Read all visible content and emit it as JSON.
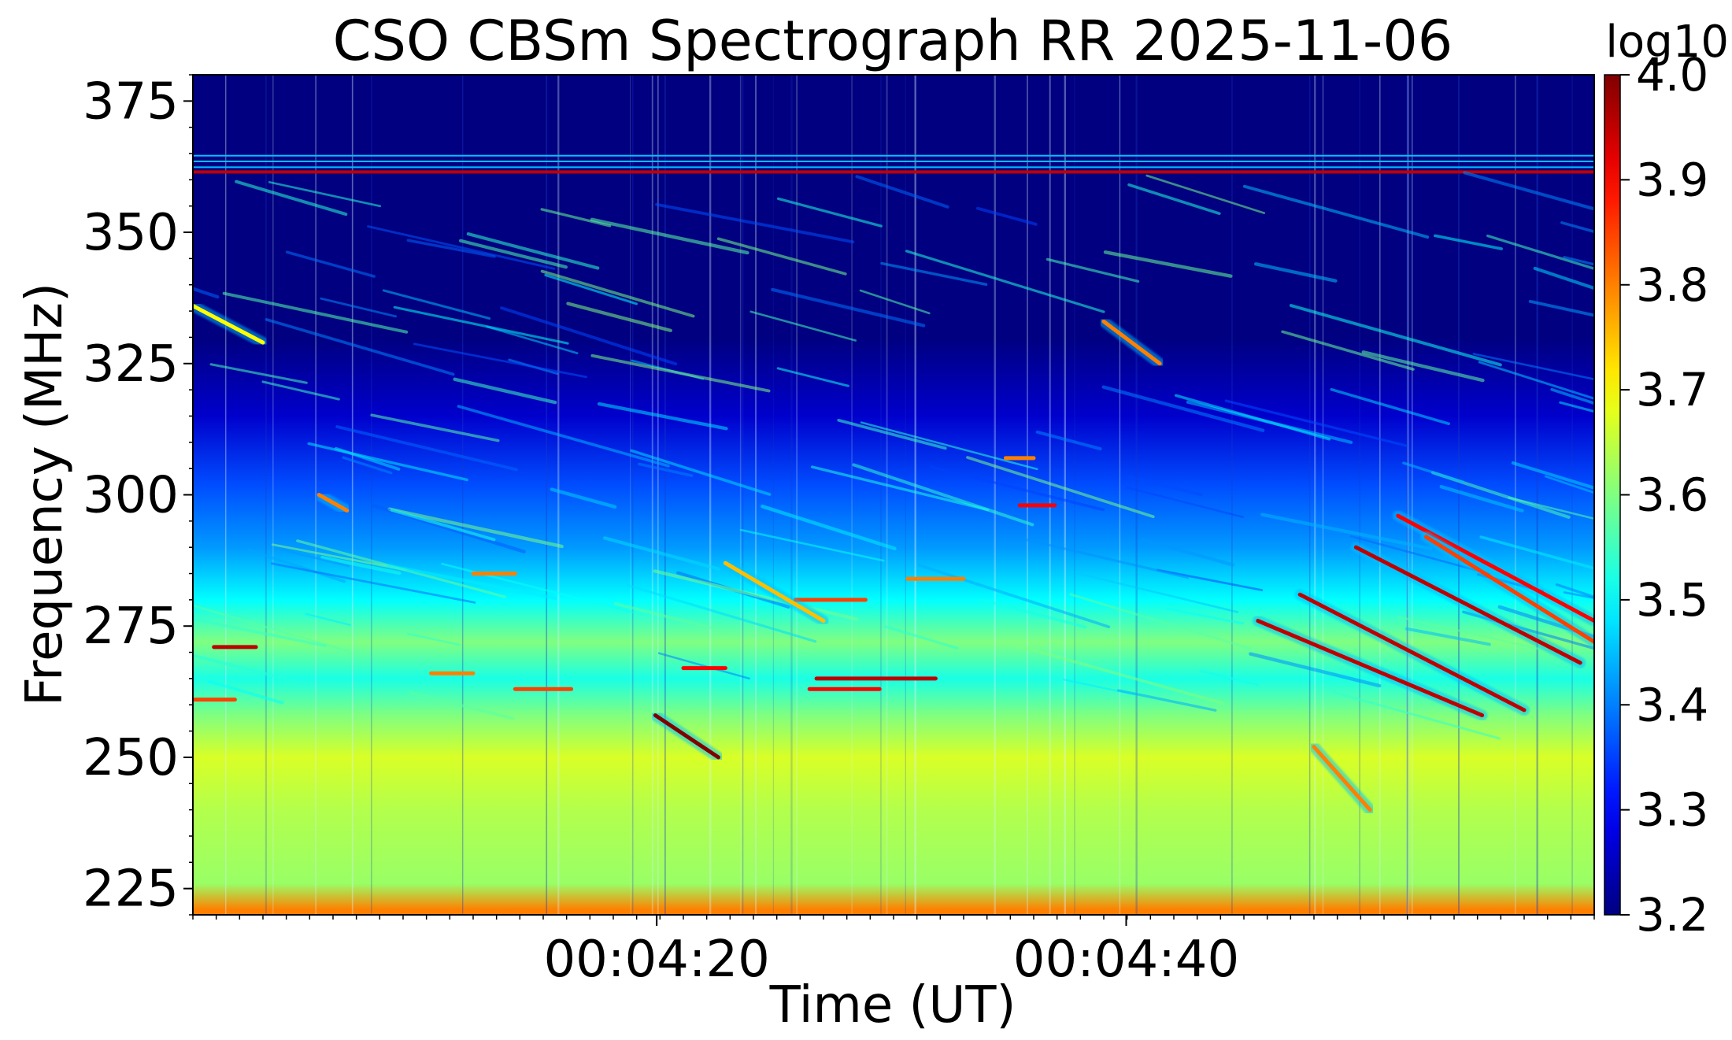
{
  "chart_data": {
    "type": "heatmap",
    "title": "CSO CBSm Spectrograph RR 2025-11-06",
    "xlabel": "Time (UT)",
    "ylabel": "Frequency (MHz)",
    "colorbar_label": "log10",
    "colormap": "jet",
    "x_ticks": [
      {
        "label": "00:04:20",
        "t": 0.331
      },
      {
        "label": "00:04:40",
        "t": 0.666
      }
    ],
    "y_ticks": [
      225,
      250,
      275,
      300,
      325,
      350,
      375
    ],
    "ylim": [
      220,
      380
    ],
    "colorbar_ticks": [
      "3.2",
      "3.3",
      "3.4",
      "3.5",
      "3.6",
      "3.7",
      "3.8",
      "3.9",
      "4.0"
    ],
    "clim": [
      3.2,
      4.0
    ],
    "background_profile": [
      {
        "freq": 221,
        "value": 3.8
      },
      {
        "freq": 226,
        "value": 3.62
      },
      {
        "freq": 240,
        "value": 3.64
      },
      {
        "freq": 250,
        "value": 3.67
      },
      {
        "freq": 258,
        "value": 3.6
      },
      {
        "freq": 265,
        "value": 3.52
      },
      {
        "freq": 272,
        "value": 3.6
      },
      {
        "freq": 280,
        "value": 3.5
      },
      {
        "freq": 290,
        "value": 3.42
      },
      {
        "freq": 302,
        "value": 3.36
      },
      {
        "freq": 315,
        "value": 3.26
      },
      {
        "freq": 330,
        "value": 3.2
      },
      {
        "freq": 380,
        "value": 3.2
      }
    ],
    "rfi_lines_mhz": [
      361.5,
      362.4,
      363.5,
      364.6
    ],
    "features": [
      {
        "t0": 0.33,
        "f0": 258,
        "t1": 0.375,
        "f1": 250,
        "value": 4.0
      },
      {
        "t0": 0.79,
        "f0": 281,
        "t1": 0.95,
        "f1": 259,
        "value": 3.95
      },
      {
        "t0": 0.76,
        "f0": 276,
        "t1": 0.92,
        "f1": 258,
        "value": 3.95
      },
      {
        "t0": 0.83,
        "f0": 290,
        "t1": 0.99,
        "f1": 268,
        "value": 3.95
      },
      {
        "t0": 0.86,
        "f0": 296,
        "t1": 1.0,
        "f1": 276,
        "value": 3.9
      },
      {
        "t0": 0.88,
        "f0": 292,
        "t1": 1.0,
        "f1": 272,
        "value": 3.85
      },
      {
        "t0": 0.65,
        "f0": 333,
        "t1": 0.69,
        "f1": 325,
        "value": 3.8
      },
      {
        "t0": 0.0,
        "f0": 336,
        "t1": 0.05,
        "f1": 329,
        "value": 3.7
      },
      {
        "t0": 0.445,
        "f0": 265,
        "t1": 0.53,
        "f1": 265,
        "value": 3.95
      },
      {
        "t0": 0.44,
        "f0": 263,
        "t1": 0.49,
        "f1": 263,
        "value": 3.9
      },
      {
        "t0": 0.43,
        "f0": 280,
        "t1": 0.48,
        "f1": 280,
        "value": 3.85
      },
      {
        "t0": 0.015,
        "f0": 271,
        "t1": 0.045,
        "f1": 271,
        "value": 3.95
      },
      {
        "t0": 0.0,
        "f0": 261,
        "t1": 0.03,
        "f1": 261,
        "value": 3.85
      },
      {
        "t0": 0.59,
        "f0": 298,
        "t1": 0.615,
        "f1": 298,
        "value": 3.9
      },
      {
        "t0": 0.58,
        "f0": 307,
        "t1": 0.6,
        "f1": 307,
        "value": 3.8
      },
      {
        "t0": 0.35,
        "f0": 267,
        "t1": 0.38,
        "f1": 267,
        "value": 3.9
      },
      {
        "t0": 0.23,
        "f0": 263,
        "t1": 0.27,
        "f1": 263,
        "value": 3.85
      },
      {
        "t0": 0.2,
        "f0": 285,
        "t1": 0.23,
        "f1": 285,
        "value": 3.8
      },
      {
        "t0": 0.09,
        "f0": 300,
        "t1": 0.11,
        "f1": 297,
        "value": 3.8
      },
      {
        "t0": 0.17,
        "f0": 266,
        "t1": 0.2,
        "f1": 266,
        "value": 3.8
      },
      {
        "t0": 0.51,
        "f0": 284,
        "t1": 0.55,
        "f1": 284,
        "value": 3.8
      },
      {
        "t0": 0.38,
        "f0": 287,
        "t1": 0.45,
        "f1": 276,
        "value": 3.75
      },
      {
        "t0": 0.8,
        "f0": 252,
        "t1": 0.84,
        "f1": 240,
        "value": 3.8
      }
    ]
  }
}
